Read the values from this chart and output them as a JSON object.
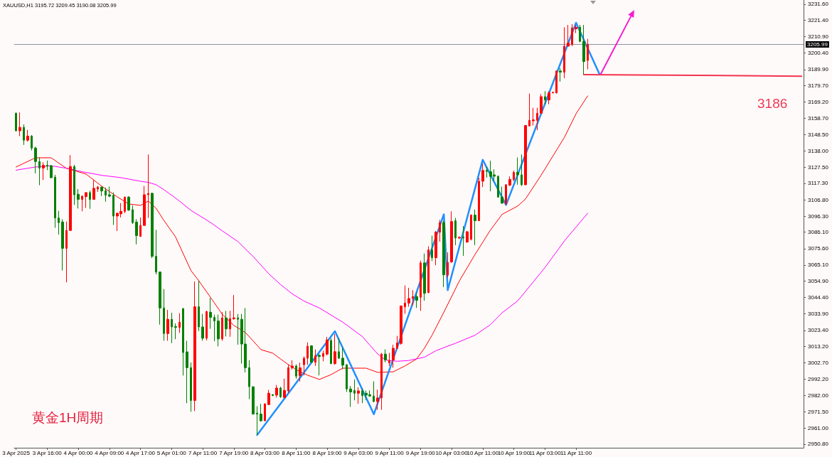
{
  "chart_data": {
    "type": "candlestick",
    "title": "XAUUSD,H1 3195.72 3209.45 3190.08 3205.99",
    "categories": [
      "3 Apr 2025",
      null,
      null,
      null,
      null,
      null,
      null,
      null,
      "3 Apr 16:00",
      null,
      null,
      null,
      null,
      null,
      null,
      null,
      "4 Apr 00:00",
      null,
      null,
      null,
      null,
      null,
      null,
      null,
      "4 Apr 09:00",
      null,
      null,
      null,
      null,
      null,
      null,
      null,
      "4 Apr 17:00",
      null,
      null,
      null,
      null,
      null,
      null,
      null,
      "5 Apr 01:00",
      null,
      null,
      null,
      null,
      null,
      null,
      null,
      "7 Apr 11:00",
      null,
      null,
      null,
      null,
      null,
      null,
      null,
      "7 Apr 19:00",
      null,
      null,
      null,
      null,
      null,
      null,
      null,
      "8 Apr 03:00",
      null,
      null,
      null,
      null,
      null,
      null,
      null,
      "8 Apr 11:00",
      null,
      null,
      null,
      null,
      null,
      null,
      null,
      "8 Apr 19:00",
      null,
      null,
      null,
      null,
      null,
      null,
      null,
      "9 Apr 03:00",
      null,
      null,
      null,
      null,
      null,
      null,
      null,
      "9 Apr 11:00",
      null,
      null,
      null,
      null,
      null,
      null,
      null,
      "9 Apr 19:00",
      null,
      null,
      null,
      null,
      null,
      null,
      null,
      "10 Apr 03:00",
      null,
      null,
      null,
      null,
      null,
      null,
      null,
      "10 Apr 11:00",
      null,
      null,
      null,
      null,
      null,
      null,
      null,
      "10 Apr 19:00",
      null,
      null,
      null,
      null,
      null,
      null,
      null,
      "11 Apr 03:00",
      null,
      null,
      null,
      null,
      null,
      null,
      null,
      "11 Apr 11:00",
      null,
      null,
      null,
      null,
      null,
      null,
      null,
      null,
      null,
      null,
      null,
      null,
      null,
      null,
      null,
      null,
      null,
      null,
      null,
      null,
      null,
      null,
      null,
      null,
      null,
      null,
      null,
      null,
      null,
      null,
      null,
      null,
      null,
      null,
      null,
      null,
      null,
      null,
      null,
      null,
      null,
      null,
      null,
      null,
      null,
      null,
      null,
      null,
      null,
      null,
      null,
      null,
      null,
      null,
      null,
      null,
      null,
      null
    ],
    "ohlc": [
      [
        3162.0,
        3162.5,
        3150.4,
        3150.8
      ],
      [
        3150.8,
        3162.5,
        3147.4,
        3153.0
      ],
      [
        3153.0,
        3154.9,
        3141.8,
        3144.8
      ],
      [
        3144.8,
        3151.4,
        3143.9,
        3147.4
      ],
      [
        3147.4,
        3148.1,
        3138.3,
        3139.8
      ],
      [
        3139.8,
        3140.6,
        3123.6,
        3131.2
      ],
      [
        3131.2,
        3133.8,
        3116.1,
        3127.0
      ],
      [
        3127.0,
        3130.7,
        3119.4,
        3128.8
      ],
      [
        3128.8,
        3131.8,
        3125.7,
        3128.2
      ],
      [
        3128.5,
        3129.1,
        3120.6,
        3120.9
      ],
      [
        3121.2,
        3122.7,
        3088.9,
        3095.2
      ],
      [
        3095.2,
        3099.7,
        3084.6,
        3092.2
      ],
      [
        3092.6,
        3094.4,
        3061.6,
        3075.8
      ],
      [
        3075.8,
        3092.9,
        3054.1,
        3087.2
      ],
      [
        3087.2,
        3135.3,
        3087.0,
        3128.0
      ],
      [
        3128.0,
        3129.1,
        3103.5,
        3110.0
      ],
      [
        3110.3,
        3113.6,
        3101.2,
        3107.0
      ],
      [
        3107.0,
        3109.6,
        3099.4,
        3109.1
      ],
      [
        3108.8,
        3111.4,
        3101.6,
        3111.4
      ],
      [
        3111.4,
        3112.6,
        3101.0,
        3107.0
      ],
      [
        3107.0,
        3119.4,
        3107.0,
        3114.1
      ],
      [
        3113.6,
        3115.6,
        3111.8,
        3114.9
      ],
      [
        3114.9,
        3115.2,
        3109.1,
        3112.4
      ],
      [
        3112.6,
        3114.5,
        3105.5,
        3109.7
      ],
      [
        3110.0,
        3115.2,
        3108.5,
        3109.1
      ],
      [
        3109.6,
        3111.4,
        3090.7,
        3096.4
      ],
      [
        3096.4,
        3098.5,
        3086.9,
        3098.2
      ],
      [
        3097.8,
        3104.7,
        3095.5,
        3099.4
      ],
      [
        3099.4,
        3108.8,
        3098.2,
        3108.5
      ],
      [
        3108.5,
        3109.1,
        3099.7,
        3100.2
      ],
      [
        3100.5,
        3103.1,
        3091.4,
        3092.2
      ],
      [
        3092.5,
        3094.4,
        3078.3,
        3083.9
      ],
      [
        3083.4,
        3095.5,
        3083.4,
        3090.4
      ],
      [
        3090.4,
        3115.6,
        3090.4,
        3110.0
      ],
      [
        3110.0,
        3135.7,
        3095.2,
        3110.8
      ],
      [
        3110.9,
        3111.4,
        3069.5,
        3070.7
      ],
      [
        3070.7,
        3087.6,
        3059.2,
        3060.7
      ],
      [
        3060.7,
        3061.0,
        3027.1,
        3037.7
      ],
      [
        3037.7,
        3049.8,
        3016.8,
        3021.4
      ],
      [
        3021.4,
        3036.5,
        3016.8,
        3030.5
      ],
      [
        3030.5,
        3034.7,
        3015.3,
        3025.6
      ],
      [
        3025.9,
        3027.9,
        3017.8,
        3025.3
      ],
      [
        3025.3,
        3034.4,
        3021.8,
        3028.6
      ],
      [
        3037.3,
        3037.7,
        2994.6,
        3009.3
      ],
      [
        3009.7,
        3016.8,
        2976.9,
        2999.6
      ],
      [
        2999.6,
        3002.9,
        2971.5,
        2978.7
      ],
      [
        2978.7,
        3054.6,
        2971.9,
        3038.5
      ],
      [
        3038.5,
        3055.1,
        3022.9,
        3025.6
      ],
      [
        3025.6,
        3033.9,
        3016.8,
        3018.4
      ],
      [
        3018.4,
        3036.0,
        3017.0,
        3035.4
      ],
      [
        3035.0,
        3044.1,
        3024.4,
        3031.7
      ],
      [
        3031.7,
        3033.5,
        3016.5,
        3029.4
      ],
      [
        3029.4,
        3033.5,
        3013.2,
        3018.0
      ],
      [
        3018.0,
        3035.0,
        3016.8,
        3031.4
      ],
      [
        3031.4,
        3035.9,
        3019.6,
        3024.4
      ],
      [
        3024.4,
        3035.9,
        3019.3,
        3030.9
      ],
      [
        3030.8,
        3046.0,
        3030.2,
        3031.4
      ],
      [
        3031.4,
        3033.9,
        3014.3,
        3030.5
      ],
      [
        3030.5,
        3033.9,
        3002.2,
        3014.7
      ],
      [
        3014.7,
        3037.7,
        2996.6,
        2999.6
      ],
      [
        2999.6,
        3004.4,
        2979.5,
        2987.5
      ],
      [
        2987.4,
        2987.8,
        2969.7,
        2970.0
      ],
      [
        2970.6,
        2975.0,
        2956.8,
        2970.0
      ],
      [
        2970.0,
        2976.5,
        2965.1,
        2965.7
      ],
      [
        2965.7,
        2976.9,
        2965.7,
        2976.5
      ],
      [
        2976.1,
        2985.5,
        2975.7,
        2983.3
      ],
      [
        2982.4,
        2982.7,
        2981.5,
        2981.8
      ],
      [
        2982.1,
        2988.6,
        2980.6,
        2986.6
      ],
      [
        2986.6,
        2987.5,
        2980.3,
        2981.0
      ],
      [
        2980.6,
        2992.6,
        2980.3,
        2985.1
      ],
      [
        2984.8,
        3001.7,
        2983.6,
        2999.6
      ],
      [
        2999.6,
        3004.4,
        2998.4,
        3000.7
      ],
      [
        3000.7,
        3001.7,
        2992.6,
        2994.2
      ],
      [
        2994.6,
        3002.9,
        2990.8,
        2999.5
      ],
      [
        3001.5,
        3006.8,
        2994.7,
        3005.7
      ],
      [
        3005.7,
        3015.8,
        3001.5,
        3013.3
      ],
      [
        3013.6,
        3013.9,
        3002.7,
        3003.0
      ],
      [
        3003.0,
        3011.3,
        3000.7,
        3007.2
      ],
      [
        3007.5,
        3008.3,
        2994.7,
        3006.8
      ],
      [
        3006.8,
        3010.5,
        3003.7,
        3008.7
      ],
      [
        3008.3,
        3019.3,
        3007.5,
        3017.3
      ],
      [
        3017.0,
        3018.4,
        3001.9,
        3002.2
      ],
      [
        3002.2,
        3021.1,
        3001.5,
        3009.8
      ],
      [
        3009.8,
        3018.4,
        3005.2,
        3005.7
      ],
      [
        3005.7,
        3012.3,
        2998.7,
        3001.2
      ],
      [
        3001.5,
        3001.8,
        2984.1,
        2986.0
      ],
      [
        2986.0,
        2987.9,
        2974.6,
        2984.1
      ],
      [
        2985.1,
        2992.1,
        2978.8,
        2983.3
      ],
      [
        2983.3,
        2987.1,
        2976.5,
        2984.8
      ],
      [
        2984.8,
        2986.3,
        2977.0,
        2981.8
      ],
      [
        2983.3,
        2985.0,
        2979.0,
        2982.1
      ],
      [
        2982.4,
        2985.1,
        2981.1,
        2981.5
      ],
      [
        2981.5,
        2990.9,
        2977.6,
        2978.0
      ],
      [
        2978.0,
        2985.6,
        2972.7,
        2980.3
      ],
      [
        2980.3,
        3009.0,
        2972.7,
        3008.3
      ],
      [
        3008.3,
        3011.3,
        3003.0,
        3004.5
      ],
      [
        3002.7,
        3009.0,
        3000.7,
        3004.2
      ],
      [
        3004.5,
        3014.3,
        2999.6,
        3012.0
      ],
      [
        3012.0,
        3019.9,
        3011.3,
        3015.4
      ],
      [
        3015.1,
        3039.3,
        3014.3,
        3039.0
      ],
      [
        3038.5,
        3052.1,
        3034.0,
        3040.8
      ],
      [
        3040.8,
        3050.6,
        3038.5,
        3043.8
      ],
      [
        3043.8,
        3049.1,
        3039.3,
        3045.0
      ],
      [
        3045.0,
        3047.6,
        3037.7,
        3042.6
      ],
      [
        3044.6,
        3068.0,
        3035.9,
        3066.5
      ],
      [
        3066.5,
        3072.5,
        3042.3,
        3047.1
      ],
      [
        3047.6,
        3077.1,
        3047.1,
        3074.8
      ],
      [
        3074.8,
        3083.9,
        3067.7,
        3069.8
      ],
      [
        3069.8,
        3086.9,
        3065.0,
        3086.1
      ],
      [
        3086.1,
        3094.0,
        3080.1,
        3092.2
      ],
      [
        3092.2,
        3093.4,
        3051.1,
        3058.9
      ],
      [
        3058.6,
        3073.3,
        3057.0,
        3066.8
      ],
      [
        3067.2,
        3099.4,
        3066.4,
        3092.9
      ],
      [
        3093.4,
        3095.2,
        3077.8,
        3082.4
      ],
      [
        3082.4,
        3083.5,
        3081.7,
        3082.8
      ],
      [
        3083.0,
        3090.0,
        3071.0,
        3082.4
      ],
      [
        3079.8,
        3086.9,
        3079.3,
        3086.4
      ],
      [
        3081.6,
        3097.5,
        3080.8,
        3097.0
      ],
      [
        3097.0,
        3100.5,
        3077.8,
        3093.4
      ],
      [
        3093.4,
        3120.9,
        3093.4,
        3118.6
      ],
      [
        3118.6,
        3130.0,
        3114.9,
        3125.5
      ],
      [
        3125.5,
        3127.7,
        3120.9,
        3124.9
      ],
      [
        3124.7,
        3131.8,
        3112.2,
        3121.7
      ],
      [
        3122.7,
        3126.2,
        3118.6,
        3121.8
      ],
      [
        3121.7,
        3122.4,
        3108.1,
        3108.5
      ],
      [
        3108.5,
        3115.2,
        3104.3,
        3104.6
      ],
      [
        3104.3,
        3116.7,
        3103.5,
        3116.4
      ],
      [
        3116.1,
        3121.7,
        3115.6,
        3119.7
      ],
      [
        3119.7,
        3125.5,
        3118.6,
        3124.3
      ],
      [
        3124.3,
        3133.8,
        3116.4,
        3122.7
      ],
      [
        3122.7,
        3135.7,
        3115.6,
        3116.4
      ],
      [
        3116.4,
        3154.5,
        3116.1,
        3154.2
      ],
      [
        3153.9,
        3174.6,
        3153.9,
        3157.5
      ],
      [
        3157.2,
        3165.5,
        3154.2,
        3157.8
      ],
      [
        3157.5,
        3165.5,
        3151.2,
        3162.0
      ],
      [
        3162.0,
        3174.2,
        3161.7,
        3172.6
      ],
      [
        3172.6,
        3176.1,
        3167.8,
        3170.5
      ],
      [
        3170.5,
        3176.1,
        3167.8,
        3175.0
      ],
      [
        3175.0,
        3175.6,
        3174.8,
        3175.4
      ],
      [
        3175.0,
        3189.3,
        3174.6,
        3189.0
      ],
      [
        3189.0,
        3190.8,
        3182.2,
        3188.2
      ],
      [
        3188.2,
        3216.9,
        3184.4,
        3204.8
      ],
      [
        3204.8,
        3218.4,
        3204.6,
        3206.8
      ],
      [
        3205.9,
        3218.9,
        3204.8,
        3216.5
      ],
      [
        3215.9,
        3218.4,
        3213.2,
        3216.9
      ],
      [
        3216.9,
        3218.4,
        3207.4,
        3207.9
      ],
      [
        3207.9,
        3218.4,
        3186.7,
        3195.0
      ],
      [
        3195.72,
        3209.45,
        3190.08,
        3205.99
      ],
      null,
      null,
      null,
      null,
      null,
      null,
      null,
      null,
      null,
      null,
      null,
      null,
      null,
      null,
      null,
      null,
      null,
      null,
      null,
      null,
      null,
      null,
      null,
      null,
      null,
      null,
      null,
      null,
      null,
      null,
      null,
      null,
      null,
      null,
      null,
      null,
      null,
      null,
      null,
      null,
      null,
      null,
      null,
      null,
      null,
      null,
      null,
      null,
      null,
      null,
      null,
      null,
      null,
      null,
      null
    ],
    "colors": [
      "#008000",
      "#ff0000",
      "#008000",
      "#ff0000",
      "#008000",
      "#008000",
      "#008000",
      "#ff0000",
      "#008000",
      "#008000",
      "#008000",
      "#008000",
      "#008000",
      "#ff0000",
      "#ff0000",
      "#008000",
      "#008000",
      "#ff0000",
      "#ff0000",
      "#008000",
      "#ff0000",
      "#ff0000",
      "#008000",
      "#008000",
      "#008000",
      "#008000",
      "#ff0000",
      "#ff0000",
      "#ff0000",
      "#008000",
      "#008000",
      "#008000",
      "#ff0000",
      "#ff0000",
      "#ff0000",
      "#008000",
      "#008000",
      "#008000",
      "#008000",
      "#ff0000",
      "#008000",
      "#008000",
      "#ff0000",
      "#008000",
      "#008000",
      "#008000",
      "#ff0000",
      "#008000",
      "#008000",
      "#ff0000",
      "#008000",
      "#008000",
      "#008000",
      "#ff0000",
      "#008000",
      "#ff0000",
      "#ff0000",
      "#008000",
      "#008000",
      "#008000",
      "#008000",
      "#008000",
      "#008000",
      "#008000",
      "#ff0000",
      "#ff0000",
      "#008000",
      "#ff0000",
      "#008000",
      "#ff0000",
      "#ff0000",
      "#ff0000",
      "#008000",
      "#ff0000",
      "#ff0000",
      "#ff0000",
      "#008000",
      "#ff0000",
      "#008000",
      "#ff0000",
      "#ff0000",
      "#008000",
      "#ff0000",
      "#008000",
      "#008000",
      "#008000",
      "#008000",
      "#008000",
      "#ff0000",
      "#008000",
      "#008000",
      "#008000",
      "#008000",
      "#ff0000",
      "#ff0000",
      "#008000",
      "#ff0000",
      "#ff0000",
      "#ff0000",
      "#ff0000",
      "#ff0000",
      "#ff0000",
      "#ff0000",
      "#008000",
      "#ff0000",
      "#008000",
      "#ff0000",
      "#008000",
      "#ff0000",
      "#ff0000",
      "#008000",
      "#ff0000",
      "#ff0000",
      "#008000",
      "#ff0000",
      "#008000",
      "#ff0000",
      "#ff0000",
      "#008000",
      "#ff0000",
      "#ff0000",
      "#008000",
      "#008000",
      "#008000",
      "#008000",
      "#008000",
      "#ff0000",
      "#ff0000",
      "#ff0000",
      "#008000",
      "#008000",
      "#ff0000",
      "#ff0000",
      "#ff0000",
      "#ff0000",
      "#ff0000",
      "#008000",
      "#ff0000",
      "#ff0000",
      "#ff0000",
      "#008000",
      "#ff0000",
      "#ff0000",
      "#ff0000",
      "#ff0000",
      "#008000",
      "#008000",
      "#ff0000",
      null,
      null,
      null,
      null,
      null,
      null,
      null,
      null,
      null,
      null,
      null,
      null,
      null,
      null,
      null,
      null,
      null,
      null,
      null,
      null,
      null,
      null,
      null,
      null,
      null,
      null,
      null,
      null,
      null,
      null,
      null,
      null,
      null,
      null,
      null,
      null,
      null,
      null,
      null,
      null,
      null,
      null,
      null,
      null,
      null,
      null,
      null,
      null,
      null,
      null,
      null,
      null,
      null,
      null,
      null
    ],
    "series": [
      {
        "type": "line",
        "color": "#ff0000",
        "values": [
          3127.7,
          null,
          null,
          null,
          null,
          3133.6,
          null,
          null,
          null,
          3133.6,
          null,
          null,
          null,
          3126.8,
          null,
          null,
          null,
          null,
          3123.2,
          null,
          null,
          null,
          3115.5,
          null,
          null,
          null,
          3108.7,
          null,
          null,
          3104.1,
          null,
          null,
          3103.2,
          null,
          3106.0,
          null,
          3101.4,
          null,
          3093.7,
          null,
          null,
          3083.1,
          null,
          null,
          null,
          3061.5,
          null,
          3055.1,
          null,
          null,
          3044.5,
          null,
          null,
          3033.8,
          null,
          null,
          3026.6,
          null,
          null,
          3022.0,
          null,
          3016.6,
          null,
          3011.1,
          null,
          null,
          3008.9,
          null,
          3005.2,
          null,
          3001.6,
          null,
          2998.4,
          null,
          null,
          2994.8,
          null,
          null,
          2992.1,
          null,
          null,
          2995.2,
          null,
          null,
          2999.3,
          null,
          null,
          null,
          null,
          null,
          2999.3,
          null,
          null,
          2996.6,
          null,
          null,
          null,
          2997.0,
          null,
          null,
          3000.7,
          null,
          null,
          3005.2,
          null,
          3012.0,
          null,
          3020.5,
          null,
          null,
          3035.0,
          null,
          null,
          null,
          3055.0,
          null,
          null,
          null,
          3071.8,
          null,
          null,
          null,
          3087.5,
          null,
          null,
          3097.5,
          null,
          null,
          null,
          3102.8,
          null,
          3107.3,
          null,
          null,
          null,
          3122.4,
          null,
          null,
          3134.5,
          null,
          null,
          3146.6,
          null,
          null,
          3161.7,
          null,
          null,
          3173.1,
          null,
          null,
          null,
          null,
          null,
          null,
          null,
          null,
          null,
          null,
          null,
          null,
          null,
          null,
          null,
          null,
          null,
          null,
          null,
          null,
          null,
          null,
          null,
          null,
          null,
          null,
          null,
          null,
          null,
          null,
          null,
          null,
          null,
          null,
          null,
          null,
          null,
          null,
          null,
          null,
          null,
          null,
          null,
          null,
          null,
          null,
          null,
          null,
          null,
          null,
          null,
          null,
          null,
          null,
          null
        ]
      },
      {
        "type": "line",
        "color": "#ff00ff",
        "values": [
          3125.7,
          null,
          null,
          null,
          null,
          3127.7,
          null,
          null,
          null,
          3128.5,
          null,
          null,
          null,
          3126.9,
          null,
          null,
          null,
          3124.7,
          null,
          null,
          null,
          null,
          3122.4,
          null,
          null,
          null,
          null,
          3120.9,
          null,
          null,
          null,
          null,
          3118.6,
          null,
          3117.9,
          null,
          3116.4,
          null,
          3113.3,
          null,
          null,
          null,
          3106.0,
          null,
          null,
          3100.0,
          null,
          null,
          null,
          null,
          3092.3,
          null,
          null,
          3087.0,
          null,
          null,
          null,
          3080.2,
          null,
          null,
          null,
          3070.5,
          null,
          null,
          null,
          3059.5,
          null,
          null,
          3052.7,
          null,
          null,
          3046.8,
          null,
          null,
          3042.2,
          null,
          null,
          null,
          3037.7,
          null,
          null,
          null,
          null,
          null,
          3028.7,
          null,
          null,
          null,
          null,
          3019.6,
          null,
          null,
          null,
          3008.3,
          null,
          3004.5,
          null,
          null,
          3003.7,
          null,
          null,
          3004.2,
          null,
          null,
          null,
          3006.3,
          null,
          null,
          3010.5,
          null,
          null,
          null,
          null,
          3015.2,
          null,
          null,
          null,
          null,
          3020.3,
          null,
          null,
          null,
          3027.1,
          null,
          null,
          3034.7,
          null,
          null,
          null,
          3042.3,
          null,
          3048.3,
          null,
          null,
          null,
          null,
          3063.5,
          null,
          null,
          null,
          null,
          3080.5,
          null,
          null,
          null,
          null,
          null,
          3098.2,
          null,
          null,
          null,
          null,
          null,
          null,
          null,
          null,
          null,
          null,
          null,
          null,
          null,
          null,
          null,
          null,
          null,
          null,
          null,
          null,
          null,
          null,
          null,
          null,
          null,
          null,
          null,
          null,
          null,
          null,
          null,
          null,
          null,
          null,
          null,
          null,
          null,
          null,
          null,
          null,
          null,
          null,
          null,
          null,
          null,
          null,
          null,
          null,
          null,
          null,
          null,
          null,
          null,
          null,
          null
        ]
      },
      {
        "type": "line",
        "color": "#1e90ff",
        "values": [
          null,
          null,
          null,
          null,
          null,
          null,
          null,
          null,
          null,
          null,
          null,
          null,
          null,
          null,
          null,
          null,
          null,
          null,
          null,
          null,
          null,
          null,
          null,
          null,
          null,
          null,
          null,
          null,
          null,
          null,
          null,
          null,
          null,
          null,
          null,
          null,
          null,
          null,
          null,
          null,
          null,
          null,
          null,
          null,
          null,
          null,
          null,
          null,
          null,
          null,
          null,
          null,
          null,
          null,
          null,
          null,
          null,
          null,
          null,
          null,
          null,
          null,
          2956.7,
          null,
          null,
          null,
          null,
          null,
          null,
          null,
          null,
          null,
          null,
          null,
          null,
          null,
          null,
          null,
          null,
          null,
          null,
          null,
          3022.9,
          null,
          null,
          null,
          null,
          null,
          null,
          null,
          null,
          null,
          2969.9,
          null,
          null,
          null,
          null,
          null,
          null,
          null,
          null,
          null,
          null,
          null,
          null,
          null,
          null,
          null,
          null,
          null,
          3097.5,
          3049.1,
          null,
          null,
          null,
          null,
          null,
          null,
          null,
          null,
          3132.3,
          null,
          null,
          null,
          null,
          null,
          3103.5,
          null,
          null,
          null,
          null,
          null,
          null,
          null,
          null,
          null,
          null,
          null,
          null,
          null,
          null,
          null,
          null,
          null,
          3219.8,
          null,
          null,
          null,
          null,
          null,
          3187.1,
          null,
          null,
          null,
          null,
          null,
          null,
          null,
          null,
          null,
          null,
          null,
          null,
          null,
          null,
          null,
          null,
          null,
          null,
          null,
          null,
          null,
          null,
          null,
          null,
          null,
          null,
          null,
          null,
          null,
          null,
          null,
          null,
          null,
          null,
          null,
          null,
          null,
          null,
          null,
          null,
          null,
          null,
          null,
          null,
          null,
          null,
          null,
          null,
          null,
          null,
          null,
          null
        ]
      },
      {
        "type": "line",
        "color": "#f5334f",
        "values": [
          null,
          null,
          null,
          null,
          null,
          null,
          null,
          null,
          null,
          null,
          null,
          null,
          null,
          null,
          null,
          null,
          null,
          null,
          null,
          null,
          null,
          null,
          null,
          null,
          null,
          null,
          null,
          null,
          null,
          null,
          null,
          null,
          null,
          null,
          null,
          null,
          null,
          null,
          null,
          null,
          null,
          null,
          null,
          null,
          null,
          null,
          null,
          null,
          null,
          null,
          null,
          null,
          null,
          null,
          null,
          null,
          null,
          null,
          null,
          null,
          null,
          null,
          null,
          null,
          null,
          null,
          null,
          null,
          null,
          null,
          null,
          null,
          null,
          null,
          null,
          null,
          null,
          null,
          null,
          null,
          null,
          null,
          null,
          null,
          null,
          null,
          null,
          null,
          null,
          null,
          null,
          null,
          null,
          null,
          null,
          null,
          null,
          null,
          null,
          null,
          null,
          null,
          null,
          null,
          null,
          null,
          null,
          null,
          null,
          null,
          null,
          null,
          null,
          null,
          null,
          null,
          null,
          null,
          null,
          null,
          null,
          null,
          null,
          null,
          null,
          null,
          null,
          null,
          null,
          null,
          null,
          null,
          null,
          null,
          null,
          null,
          null,
          null,
          null,
          null,
          null,
          null,
          null,
          null,
          null,
          null,
          3186.7,
          null,
          null,
          null,
          null,
          null,
          null,
          null,
          null,
          null,
          null,
          null,
          null,
          null,
          null,
          null,
          null,
          null,
          null,
          null,
          null,
          null,
          null,
          null,
          null,
          null,
          null,
          null,
          null,
          null,
          null,
          null,
          null,
          null,
          null,
          null,
          null,
          null,
          null,
          null,
          null,
          null,
          null,
          null,
          null,
          null,
          null,
          null,
          null,
          null,
          null,
          null,
          null,
          null,
          null,
          null,
          3185.7
        ]
      }
    ],
    "ylim": [
      2948.5,
      3234.3
    ],
    "yticks": [
      {
        "value": 3231.6,
        "label": "3231.60"
      },
      {
        "value": 3221.4,
        "label": "3221.40"
      },
      {
        "value": 3210.9,
        "label": "3210.90"
      },
      {
        "value": 3200.4,
        "label": "3200.40"
      },
      {
        "value": 3189.9,
        "label": "3189.90"
      },
      {
        "value": 3179.7,
        "label": "3179.70"
      },
      {
        "value": 3169.2,
        "label": "3169.20"
      },
      {
        "value": 3158.7,
        "label": "3158.70"
      },
      {
        "value": 3148.5,
        "label": "3148.50"
      },
      {
        "value": 3138,
        "label": "3138.00"
      },
      {
        "value": 3127.5,
        "label": "3127.50"
      },
      {
        "value": 3117.3,
        "label": "3117.30"
      },
      {
        "value": 3106.8,
        "label": "3106.80"
      },
      {
        "value": 3096.3,
        "label": "3096.30"
      },
      {
        "value": 3086.1,
        "label": "3086.10"
      },
      {
        "value": 3075.6,
        "label": "3075.60"
      },
      {
        "value": 3065.1,
        "label": "3065.10"
      },
      {
        "value": 3054.9,
        "label": "3054.90"
      },
      {
        "value": 3044.4,
        "label": "3044.40"
      },
      {
        "value": 3033.9,
        "label": "3033.90"
      },
      {
        "value": 3023.4,
        "label": "3023.40"
      },
      {
        "value": 3013.2,
        "label": "3013.20"
      },
      {
        "value": 3002.7,
        "label": "3002.70"
      },
      {
        "value": 2992.2,
        "label": "2992.20"
      },
      {
        "value": 2982,
        "label": "2982.00"
      },
      {
        "value": 2971.5,
        "label": "2971.50"
      },
      {
        "value": 2961,
        "label": "2961.00"
      },
      {
        "value": 2950.8,
        "label": "2950.80"
      }
    ],
    "ref_lines": [
      {
        "axis": "y",
        "value": 3205.99,
        "label": "3205.99",
        "color": "#8c919c"
      }
    ],
    "annotations": [
      "黄金1H周期",
      "3186"
    ]
  }
}
